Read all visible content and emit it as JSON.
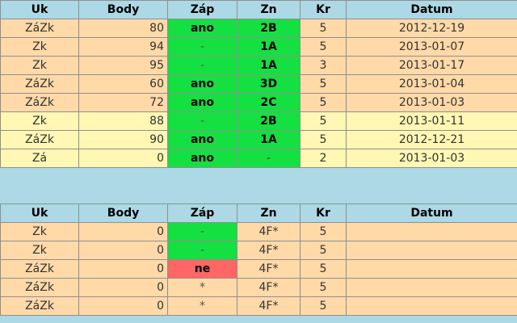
{
  "headers": {
    "uk": "Uk",
    "body": "Body",
    "zap": "Záp",
    "zn": "Zn",
    "kr": "Kr",
    "datum": "Datum"
  },
  "table1": [
    {
      "uk": "ZáZk",
      "body": "80",
      "zap": "ano",
      "zn": "2B",
      "kr": "5",
      "datum": "2012-12-19",
      "row": "orange",
      "zap_color": "green",
      "zn_color": "green"
    },
    {
      "uk": "Zk",
      "body": "94",
      "zap": "-",
      "zn": "1A",
      "kr": "5",
      "datum": "2013-01-07",
      "row": "orange",
      "zap_color": "green",
      "zn_color": "green"
    },
    {
      "uk": "Zk",
      "body": "95",
      "zap": "-",
      "zn": "1A",
      "kr": "3",
      "datum": "2013-01-17",
      "row": "orange",
      "zap_color": "green",
      "zn_color": "green"
    },
    {
      "uk": "ZáZk",
      "body": "60",
      "zap": "ano",
      "zn": "3D",
      "kr": "5",
      "datum": "2013-01-04",
      "row": "orange",
      "zap_color": "green",
      "zn_color": "green"
    },
    {
      "uk": "ZáZk",
      "body": "72",
      "zap": "ano",
      "zn": "2C",
      "kr": "5",
      "datum": "2013-01-03",
      "row": "orange",
      "zap_color": "green",
      "zn_color": "green"
    },
    {
      "uk": "Zk",
      "body": "88",
      "zap": "-",
      "zn": "2B",
      "kr": "5",
      "datum": "2013-01-11",
      "row": "yellow",
      "zap_color": "green",
      "zn_color": "green"
    },
    {
      "uk": "ZáZk",
      "body": "90",
      "zap": "ano",
      "zn": "1A",
      "kr": "5",
      "datum": "2012-12-21",
      "row": "yellow",
      "zap_color": "green",
      "zn_color": "green"
    },
    {
      "uk": "Zá",
      "body": "0",
      "zap": "ano",
      "zn": "-",
      "kr": "2",
      "datum": "2013-01-03",
      "row": "yellow",
      "zap_color": "green",
      "zn_color": "green"
    }
  ],
  "table2": [
    {
      "uk": "Zk",
      "body": "0",
      "zap": "-",
      "zn": "4F*",
      "kr": "5",
      "datum": "",
      "row": "orange",
      "zap_color": "green",
      "zn_color": ""
    },
    {
      "uk": "Zk",
      "body": "0",
      "zap": "-",
      "zn": "4F*",
      "kr": "5",
      "datum": "",
      "row": "orange",
      "zap_color": "green",
      "zn_color": ""
    },
    {
      "uk": "ZáZk",
      "body": "0",
      "zap": "ne",
      "zn": "4F*",
      "kr": "5",
      "datum": "",
      "row": "orange",
      "zap_color": "red",
      "zn_color": ""
    },
    {
      "uk": "ZáZk",
      "body": "0",
      "zap": "*",
      "zn": "4F*",
      "kr": "5",
      "datum": "",
      "row": "orange",
      "zap_color": "",
      "zn_color": ""
    },
    {
      "uk": "ZáZk",
      "body": "0",
      "zap": "*",
      "zn": "4F*",
      "kr": "5",
      "datum": "",
      "row": "orange",
      "zap_color": "",
      "zn_color": ""
    }
  ]
}
